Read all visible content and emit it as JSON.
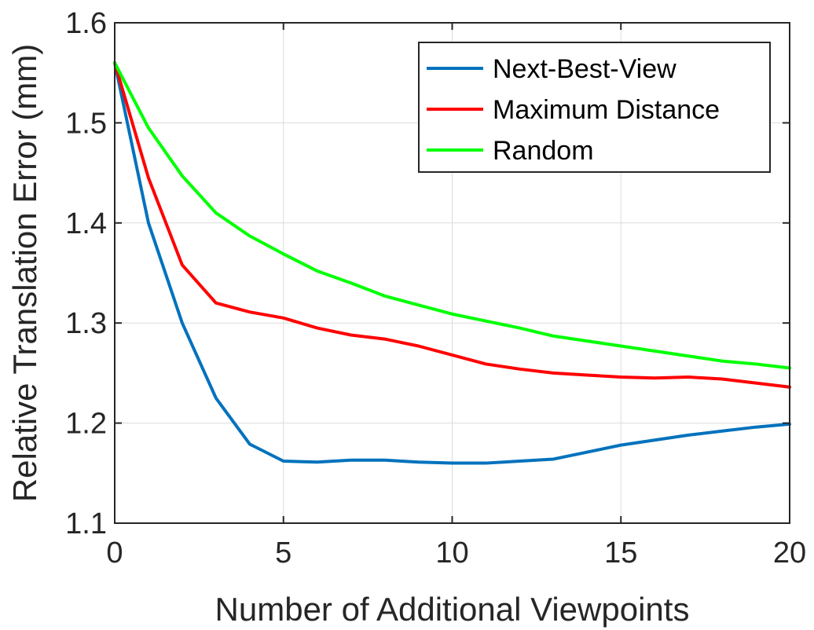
{
  "chart_data": {
    "type": "line",
    "title": "",
    "xlabel": "Number of Additional Viewpoints",
    "ylabel": "Relative Translation Error (mm)",
    "xlim": [
      0,
      20
    ],
    "ylim": [
      1.1,
      1.6
    ],
    "xticks": [
      0,
      5,
      10,
      15,
      20
    ],
    "yticks": [
      1.1,
      1.2,
      1.3,
      1.4,
      1.5,
      1.6
    ],
    "xtick_labels": [
      "0",
      "5",
      "10",
      "15",
      "20"
    ],
    "ytick_labels": [
      "1.1",
      "1.2",
      "1.3",
      "1.4",
      "1.5",
      "1.6"
    ],
    "grid": true,
    "legend_position": "top-right",
    "x": [
      0,
      1,
      2,
      3,
      4,
      5,
      6,
      7,
      8,
      9,
      10,
      11,
      12,
      13,
      14,
      15,
      16,
      17,
      18,
      19,
      20
    ],
    "series": [
      {
        "name": "Next-Best-View",
        "color": "#0072BD",
        "values": [
          1.56,
          1.4,
          1.3,
          1.225,
          1.179,
          1.162,
          1.161,
          1.163,
          1.163,
          1.161,
          1.16,
          1.16,
          1.162,
          1.164,
          1.171,
          1.178,
          1.183,
          1.188,
          1.192,
          1.196,
          1.199
        ]
      },
      {
        "name": "Maximum Distance",
        "color": "#FF0000",
        "values": [
          1.56,
          1.445,
          1.358,
          1.32,
          1.311,
          1.305,
          1.295,
          1.288,
          1.284,
          1.277,
          1.268,
          1.259,
          1.254,
          1.25,
          1.248,
          1.246,
          1.245,
          1.246,
          1.244,
          1.24,
          1.236
        ]
      },
      {
        "name": "Random",
        "color": "#00FF00",
        "values": [
          1.56,
          1.495,
          1.447,
          1.41,
          1.387,
          1.369,
          1.352,
          1.34,
          1.327,
          1.318,
          1.309,
          1.302,
          1.295,
          1.287,
          1.282,
          1.277,
          1.272,
          1.267,
          1.262,
          1.259,
          1.255
        ]
      }
    ]
  }
}
